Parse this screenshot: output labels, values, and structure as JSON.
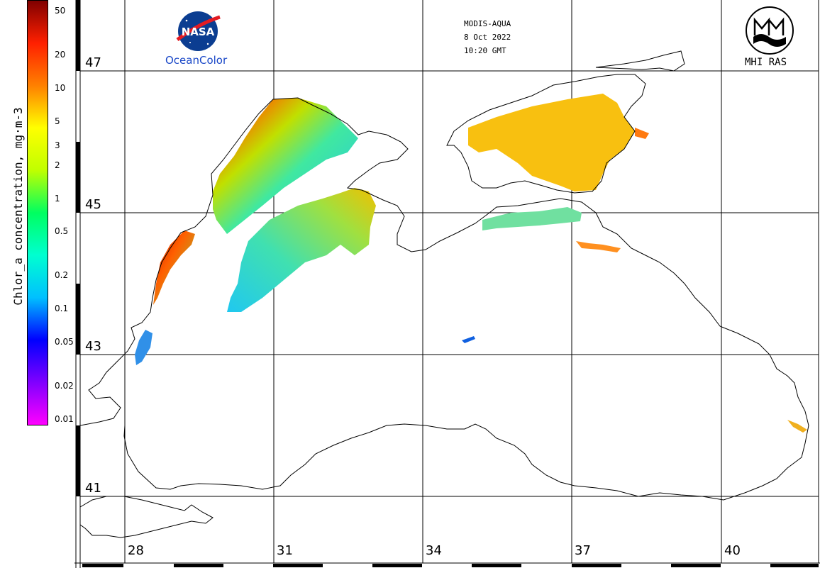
{
  "header": {
    "sensor": "MODIS-AQUA",
    "date": "8 Oct 2022",
    "time": "10:20 GMT",
    "agency_label": "OceanColor",
    "logo_text": "NASA",
    "institute_label": "MHI RAS"
  },
  "scale": {
    "axis_label": "Chlor_a concentration, mg·m-3",
    "ticks": [
      "50",
      "20",
      "10",
      "5",
      "3",
      "2",
      "1",
      "0.5",
      "0.2",
      "0.1",
      "0.05",
      "0.02",
      "0.01"
    ],
    "colors": [
      "#ff00ff",
      "#8000ff",
      "#0000ff",
      "#00c0ff",
      "#00ffd0",
      "#00ff60",
      "#c0ff00",
      "#ffff00",
      "#ff8000",
      "#ff2000",
      "#800000"
    ]
  },
  "map": {
    "latitudes": [
      "47",
      "45",
      "43",
      "41"
    ],
    "longitudes": [
      "28",
      "31",
      "34",
      "37",
      "40"
    ]
  }
}
